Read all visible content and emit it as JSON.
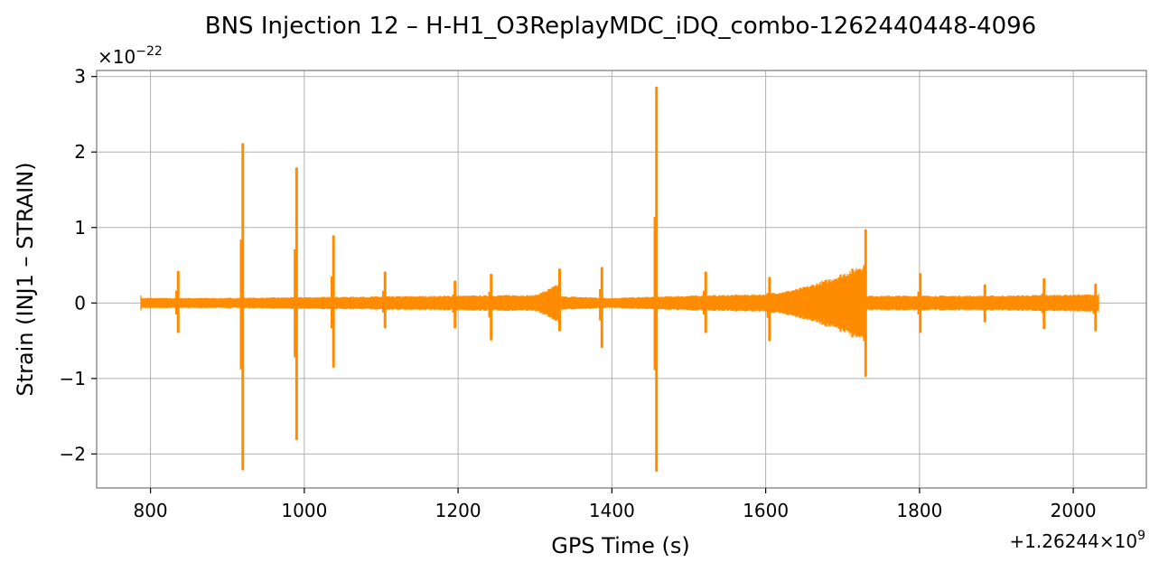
{
  "chart_data": {
    "type": "line",
    "title": "BNS Injection 12 – H-H1_O3ReplayMDC_iDQ_combo-1262440448-4096",
    "xlabel": "GPS Time (s)",
    "ylabel": "Strain (INJ1 – STRAIN)",
    "x_offset_label": "+1.26244×10",
    "x_offset_exp": "9",
    "y_scale_label": "×10",
    "y_scale_exp": "−22",
    "xlim": [
      730,
      2095
    ],
    "ylim": [
      -2.45,
      3.08
    ],
    "x_ticks": [
      800,
      1000,
      1200,
      1400,
      1600,
      1800,
      2000
    ],
    "x_tick_labels": [
      "800",
      "1000",
      "1200",
      "1400",
      "1600",
      "1800",
      "2000"
    ],
    "y_ticks": [
      -2,
      -1,
      0,
      1,
      2,
      3
    ],
    "y_tick_labels": [
      "−2",
      "−1",
      "0",
      "1",
      "2",
      "3"
    ],
    "grid": true,
    "series": [
      {
        "color": "#ff8c00",
        "x_range": [
          788,
          2032
        ],
        "baseline_envelope": [
          [
            788,
            0.07
          ],
          [
            900,
            0.07
          ],
          [
            1000,
            0.08
          ],
          [
            1100,
            0.09
          ],
          [
            1200,
            0.1
          ],
          [
            1280,
            0.11
          ],
          [
            1400,
            0.07
          ],
          [
            1500,
            0.1
          ],
          [
            1600,
            0.12
          ],
          [
            1700,
            0.1
          ],
          [
            1800,
            0.1
          ],
          [
            1900,
            0.1
          ],
          [
            2032,
            0.12
          ]
        ],
        "bursts": [
          {
            "t": 836,
            "peak": 0.41,
            "trough": -0.38
          },
          {
            "t": 920,
            "peak": 2.1,
            "trough": -2.2
          },
          {
            "t": 990,
            "peak": 1.78,
            "trough": -1.8
          },
          {
            "t": 1038,
            "peak": 0.88,
            "trough": -0.84
          },
          {
            "t": 1105,
            "peak": 0.4,
            "trough": -0.32
          },
          {
            "t": 1196,
            "peak": 0.28,
            "trough": -0.32
          },
          {
            "t": 1243,
            "peak": 0.37,
            "trough": -0.48
          },
          {
            "t": 1332,
            "peak": 0.44,
            "trough": -0.36
          },
          {
            "t": 1387,
            "peak": 0.46,
            "trough": -0.58
          },
          {
            "t": 1458,
            "peak": 2.85,
            "trough": -2.22
          },
          {
            "t": 1522,
            "peak": 0.4,
            "trough": -0.38
          },
          {
            "t": 1605,
            "peak": 0.33,
            "trough": -0.49
          },
          {
            "t": 1730,
            "peak": 0.96,
            "trough": -0.96
          },
          {
            "t": 1801,
            "peak": 0.38,
            "trough": -0.38
          },
          {
            "t": 1885,
            "peak": 0.23,
            "trough": -0.24
          },
          {
            "t": 1962,
            "peak": 0.31,
            "trough": -0.33
          },
          {
            "t": 2029,
            "peak": 0.24,
            "trough": -0.36
          }
        ],
        "chirps": [
          {
            "start": 1280,
            "end": 1332,
            "amp": 0.27
          },
          {
            "start": 1605,
            "end": 1730,
            "amp": 0.55
          }
        ]
      }
    ]
  }
}
